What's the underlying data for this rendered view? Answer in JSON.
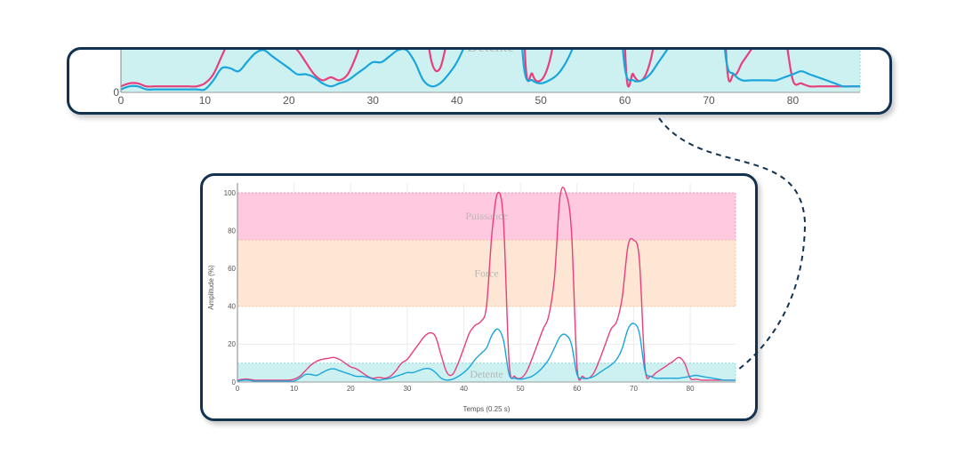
{
  "colors": {
    "panel_border": "#13324f",
    "series_a": "#e83e7b",
    "series_b": "#1aa6dc",
    "zone_puissance": "#ffc9e0",
    "zone_force": "#fde6d3",
    "zone_detente": "#cdf0f0"
  },
  "chart_data": [
    {
      "type": "line",
      "title": "",
      "xlabel": "",
      "ylabel": "",
      "xlim": [
        0,
        88
      ],
      "ylim": [
        0,
        15
      ],
      "x_ticks": [
        "0",
        "10",
        "20",
        "30",
        "40",
        "50",
        "60",
        "70",
        "80"
      ],
      "y_ticks": [
        "0"
      ],
      "grid": true,
      "bands": [
        {
          "label": "Detente",
          "from": 0,
          "to": 10
        }
      ],
      "series_ref": "same as main chart (zoomed view of 0–15 %)"
    },
    {
      "type": "line",
      "title": "",
      "xlabel": "Temps (0.25 s)",
      "ylabel": "Amplitude (%)",
      "xlim": [
        0,
        88
      ],
      "ylim": [
        0,
        100
      ],
      "x_ticks": [
        "0",
        "10",
        "20",
        "30",
        "40",
        "50",
        "60",
        "70",
        "80"
      ],
      "y_ticks": [
        "0",
        "20",
        "40",
        "60",
        "80",
        "100"
      ],
      "grid": true,
      "bands": [
        {
          "label": "Puissance",
          "from": 75,
          "to": 100
        },
        {
          "label": "Force",
          "from": 40,
          "to": 75
        },
        {
          "label": "Detente",
          "from": 0,
          "to": 10
        }
      ],
      "series": [
        {
          "color": "#e83e7b",
          "x": [
            0,
            1,
            2,
            3,
            4,
            5,
            6,
            7,
            8,
            9,
            10,
            11,
            12,
            13,
            14,
            15,
            16,
            17,
            18,
            19,
            20,
            21,
            22,
            23,
            24,
            25,
            26,
            27,
            28,
            29,
            30,
            31,
            32,
            33,
            34,
            35,
            36,
            37,
            38,
            39,
            40,
            41,
            42,
            43,
            44,
            45,
            46,
            47,
            48,
            49,
            50,
            51,
            52,
            53,
            54,
            55,
            56,
            57,
            58,
            59,
            60,
            61,
            62,
            63,
            64,
            65,
            66,
            67,
            68,
            69,
            70,
            71,
            72,
            73,
            74,
            75,
            76,
            77,
            78,
            79,
            80,
            81,
            82,
            83,
            84,
            85,
            86,
            87,
            88
          ],
          "values": [
            1,
            1.5,
            1.5,
            1,
            1,
            1,
            1,
            1,
            1,
            1,
            1.5,
            3,
            6,
            9,
            11,
            12,
            12.5,
            13,
            12,
            10,
            8,
            7,
            5,
            3,
            2,
            2.5,
            2,
            3,
            6,
            10,
            12,
            16,
            20,
            24,
            26,
            24,
            14,
            5,
            4,
            10,
            18,
            26,
            30,
            32,
            40,
            80,
            100,
            85,
            10,
            3,
            2,
            5,
            12,
            20,
            28,
            35,
            55,
            98,
            100,
            80,
            8,
            3,
            2,
            5,
            12,
            20,
            28,
            32,
            45,
            72,
            75,
            65,
            8,
            3,
            5,
            7,
            9,
            11,
            13,
            10,
            2,
            1.5,
            1,
            1,
            1,
            1,
            1,
            1,
            1
          ]
        },
        {
          "color": "#1aa6dc",
          "x": [
            0,
            1,
            2,
            3,
            4,
            5,
            6,
            7,
            8,
            9,
            10,
            11,
            12,
            13,
            14,
            15,
            16,
            17,
            18,
            19,
            20,
            21,
            22,
            23,
            24,
            25,
            26,
            27,
            28,
            29,
            30,
            31,
            32,
            33,
            34,
            35,
            36,
            37,
            38,
            39,
            40,
            41,
            42,
            43,
            44,
            45,
            46,
            47,
            48,
            49,
            50,
            51,
            52,
            53,
            54,
            55,
            56,
            57,
            58,
            59,
            60,
            61,
            62,
            63,
            64,
            65,
            66,
            67,
            68,
            69,
            70,
            71,
            72,
            73,
            74,
            75,
            76,
            77,
            78,
            79,
            80,
            81,
            82,
            83,
            84,
            85,
            86,
            87,
            88
          ],
          "values": [
            0.5,
            1,
            1,
            0.5,
            0.5,
            0.5,
            0.5,
            0.5,
            0.5,
            0.5,
            0.5,
            2,
            4,
            4,
            3.5,
            5,
            6.5,
            7,
            6,
            5,
            4,
            3,
            3,
            2.5,
            1.5,
            1,
            1.5,
            2,
            3,
            4,
            5,
            5,
            6,
            7,
            7,
            5,
            2,
            1,
            1.5,
            3,
            5,
            8,
            12,
            15,
            18,
            25,
            28,
            22,
            4,
            2,
            1.5,
            2,
            3,
            5,
            8,
            12,
            18,
            24,
            25,
            20,
            4,
            2,
            2,
            3,
            5,
            7,
            9,
            12,
            18,
            28,
            31,
            26,
            6,
            3,
            2,
            2,
            2,
            2,
            2,
            2.5,
            3,
            3.5,
            3,
            2.5,
            2,
            1.5,
            1,
            1,
            1
          ]
        }
      ]
    }
  ]
}
